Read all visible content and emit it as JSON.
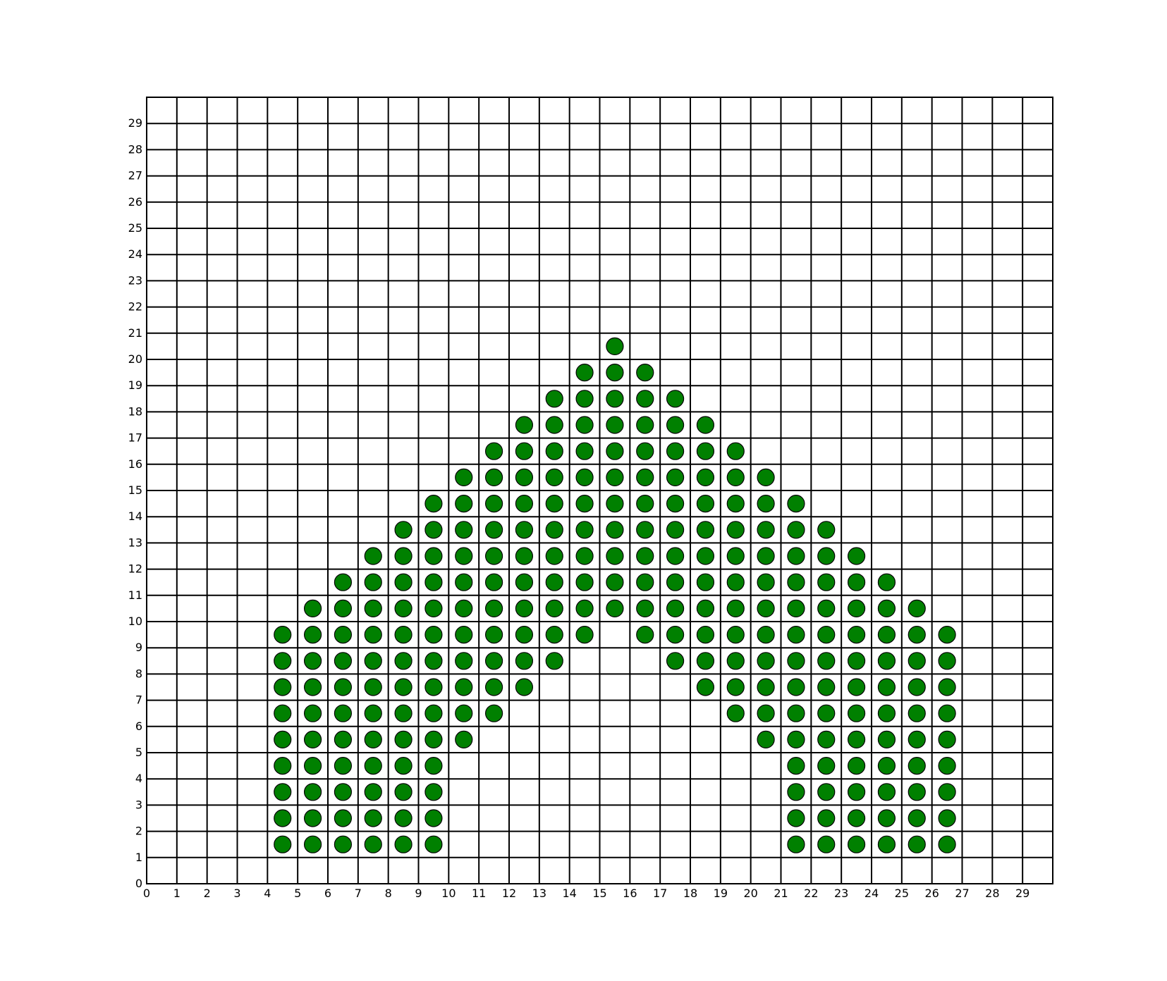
{
  "chart_data": {
    "type": "scatter",
    "title": "",
    "xlabel": "",
    "ylabel": "",
    "xlim": [
      0,
      30
    ],
    "ylim": [
      0,
      30
    ],
    "grid": true,
    "x_ticks": [
      0,
      1,
      2,
      3,
      4,
      5,
      6,
      7,
      8,
      9,
      10,
      11,
      12,
      13,
      14,
      15,
      16,
      17,
      18,
      19,
      20,
      21,
      22,
      23,
      24,
      25,
      26,
      27,
      28,
      29
    ],
    "y_ticks": [
      0,
      1,
      2,
      3,
      4,
      5,
      6,
      7,
      8,
      9,
      10,
      11,
      12,
      13,
      14,
      15,
      16,
      17,
      18,
      19,
      20,
      21,
      22,
      23,
      24,
      25,
      26,
      27,
      28,
      29
    ],
    "marker_color": "#008000",
    "marker_edge_color": "#000000",
    "grid_color": "#000000",
    "rows": [
      {
        "y": 20.5,
        "x": [
          15.5
        ]
      },
      {
        "y": 19.5,
        "x": [
          14.5,
          15.5,
          16.5
        ]
      },
      {
        "y": 18.5,
        "x": [
          13.5,
          14.5,
          15.5,
          16.5,
          17.5
        ]
      },
      {
        "y": 17.5,
        "x": [
          12.5,
          13.5,
          14.5,
          15.5,
          16.5,
          17.5,
          18.5
        ]
      },
      {
        "y": 16.5,
        "x": [
          11.5,
          12.5,
          13.5,
          14.5,
          15.5,
          16.5,
          17.5,
          18.5,
          19.5
        ]
      },
      {
        "y": 15.5,
        "x": [
          10.5,
          11.5,
          12.5,
          13.5,
          14.5,
          15.5,
          16.5,
          17.5,
          18.5,
          19.5,
          20.5
        ]
      },
      {
        "y": 14.5,
        "x": [
          9.5,
          10.5,
          11.5,
          12.5,
          13.5,
          14.5,
          15.5,
          16.5,
          17.5,
          18.5,
          19.5,
          20.5,
          21.5
        ]
      },
      {
        "y": 13.5,
        "x": [
          8.5,
          9.5,
          10.5,
          11.5,
          12.5,
          13.5,
          14.5,
          15.5,
          16.5,
          17.5,
          18.5,
          19.5,
          20.5,
          21.5,
          22.5
        ]
      },
      {
        "y": 12.5,
        "x": [
          7.5,
          8.5,
          9.5,
          10.5,
          11.5,
          12.5,
          13.5,
          14.5,
          15.5,
          16.5,
          17.5,
          18.5,
          19.5,
          20.5,
          21.5,
          22.5,
          23.5
        ]
      },
      {
        "y": 11.5,
        "x": [
          6.5,
          7.5,
          8.5,
          9.5,
          10.5,
          11.5,
          12.5,
          13.5,
          14.5,
          15.5,
          16.5,
          17.5,
          18.5,
          19.5,
          20.5,
          21.5,
          22.5,
          23.5,
          24.5
        ]
      },
      {
        "y": 10.5,
        "x": [
          5.5,
          6.5,
          7.5,
          8.5,
          9.5,
          10.5,
          11.5,
          12.5,
          13.5,
          14.5,
          15.5,
          16.5,
          17.5,
          18.5,
          19.5,
          20.5,
          21.5,
          22.5,
          23.5,
          24.5,
          25.5
        ]
      },
      {
        "y": 9.5,
        "x": [
          4.5,
          5.5,
          6.5,
          7.5,
          8.5,
          9.5,
          10.5,
          11.5,
          12.5,
          13.5,
          14.5,
          16.5,
          17.5,
          18.5,
          19.5,
          20.5,
          21.5,
          22.5,
          23.5,
          24.5,
          25.5,
          26.5
        ]
      },
      {
        "y": 8.5,
        "x": [
          4.5,
          5.5,
          6.5,
          7.5,
          8.5,
          9.5,
          10.5,
          11.5,
          12.5,
          13.5,
          17.5,
          18.5,
          19.5,
          20.5,
          21.5,
          22.5,
          23.5,
          24.5,
          25.5,
          26.5
        ]
      },
      {
        "y": 7.5,
        "x": [
          4.5,
          5.5,
          6.5,
          7.5,
          8.5,
          9.5,
          10.5,
          11.5,
          12.5,
          18.5,
          19.5,
          20.5,
          21.5,
          22.5,
          23.5,
          24.5,
          25.5,
          26.5
        ]
      },
      {
        "y": 6.5,
        "x": [
          4.5,
          5.5,
          6.5,
          7.5,
          8.5,
          9.5,
          10.5,
          11.5,
          19.5,
          20.5,
          21.5,
          22.5,
          23.5,
          24.5,
          25.5,
          26.5
        ]
      },
      {
        "y": 5.5,
        "x": [
          4.5,
          5.5,
          6.5,
          7.5,
          8.5,
          9.5,
          10.5,
          20.5,
          21.5,
          22.5,
          23.5,
          24.5,
          25.5,
          26.5
        ]
      },
      {
        "y": 4.5,
        "x": [
          4.5,
          5.5,
          6.5,
          7.5,
          8.5,
          9.5,
          21.5,
          22.5,
          23.5,
          24.5,
          25.5,
          26.5
        ]
      },
      {
        "y": 3.5,
        "x": [
          4.5,
          5.5,
          6.5,
          7.5,
          8.5,
          9.5,
          21.5,
          22.5,
          23.5,
          24.5,
          25.5,
          26.5
        ]
      },
      {
        "y": 2.5,
        "x": [
          4.5,
          5.5,
          6.5,
          7.5,
          8.5,
          9.5,
          21.5,
          22.5,
          23.5,
          24.5,
          25.5,
          26.5
        ]
      },
      {
        "y": 1.5,
        "x": [
          4.5,
          5.5,
          6.5,
          7.5,
          8.5,
          9.5,
          21.5,
          22.5,
          23.5,
          24.5,
          25.5,
          26.5
        ]
      }
    ]
  }
}
